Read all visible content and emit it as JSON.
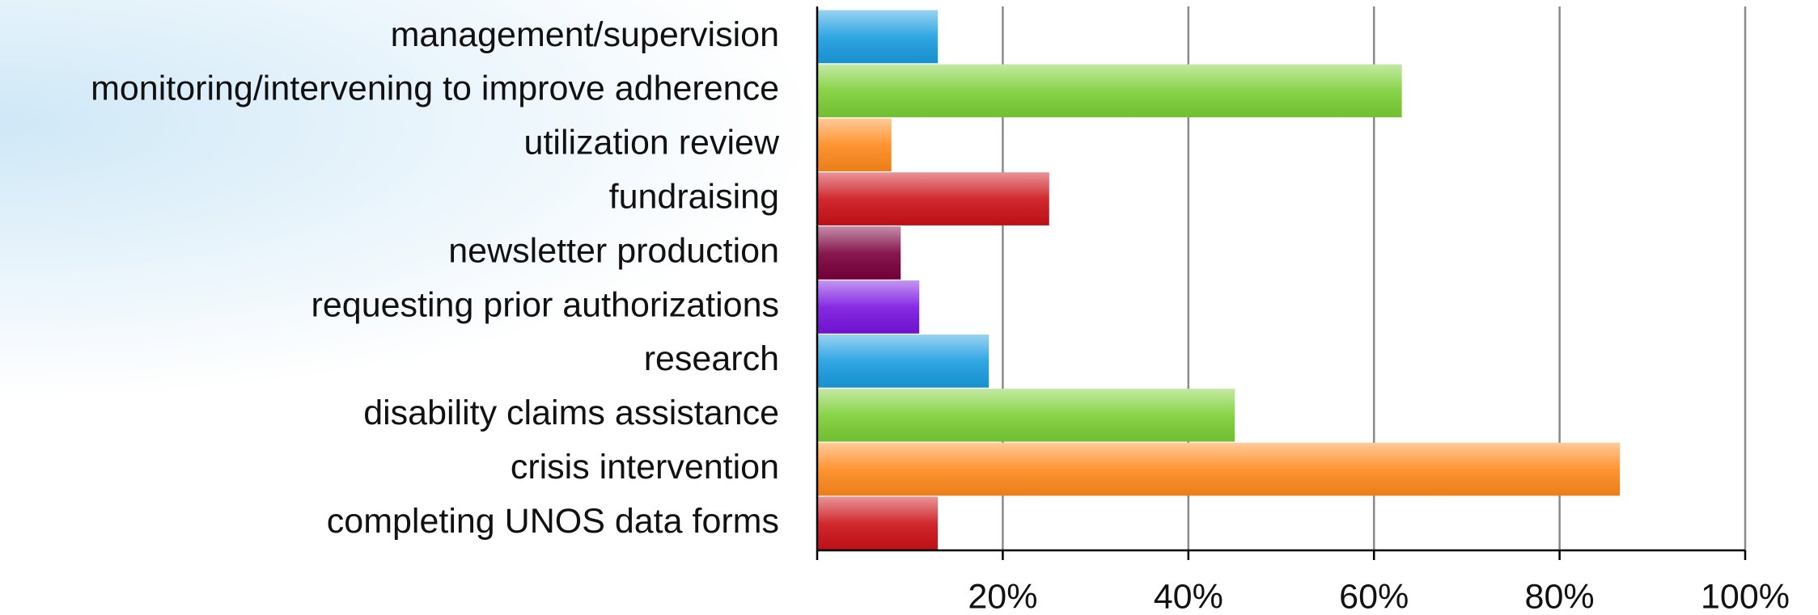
{
  "chart_data": {
    "type": "hbar",
    "categories": [
      "management/supervision",
      "monitoring/intervening to improve adherence",
      "utilization review",
      "fundraising",
      "newsletter production",
      "requesting prior authorizations",
      "research",
      "disability claims assistance",
      "crisis intervention",
      "completing UNOS data forms"
    ],
    "values": [
      13,
      63,
      8,
      25,
      9,
      11,
      18.5,
      45,
      86.5,
      13
    ],
    "colors": [
      "#1a9de0",
      "#7ccf35",
      "#ff8a1c",
      "#cc1218",
      "#7a003c",
      "#7a14e0",
      "#1a9de0",
      "#7ccf35",
      "#ff8a1c",
      "#cc1218"
    ],
    "xlim": [
      0,
      100
    ],
    "xticks": [
      {
        "value": 20,
        "label": "20%"
      },
      {
        "value": 40,
        "label": "40%"
      },
      {
        "value": 60,
        "label": "60%"
      },
      {
        "value": 80,
        "label": "80%"
      },
      {
        "value": 100,
        "label": "100%"
      }
    ],
    "grid": true
  }
}
